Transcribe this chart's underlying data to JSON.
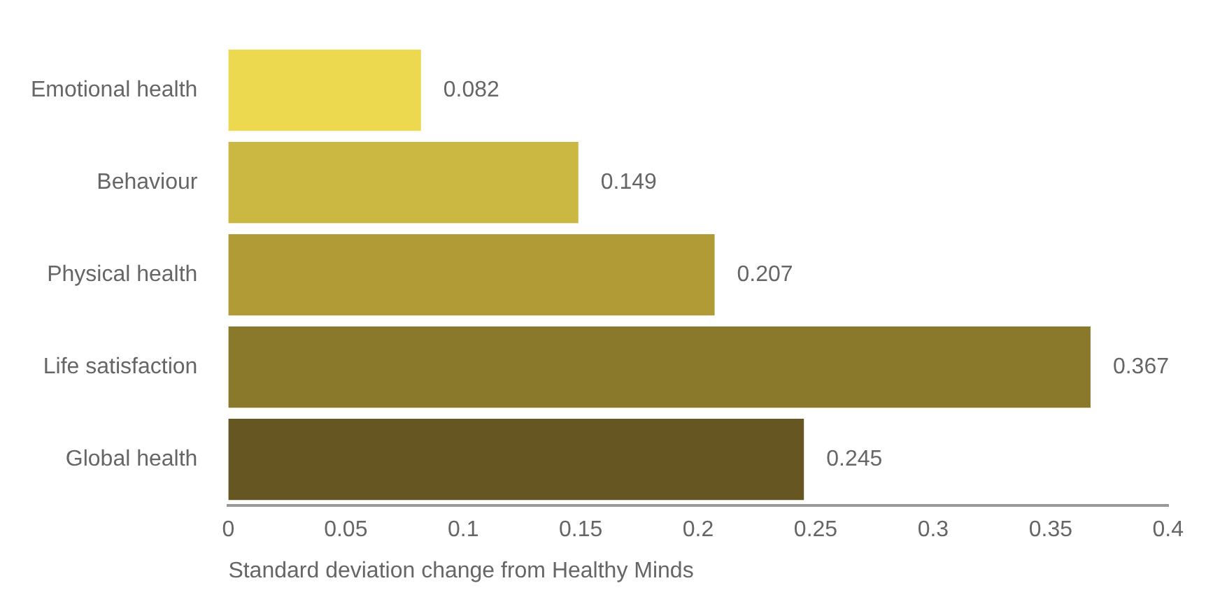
{
  "chart_data": {
    "type": "bar",
    "orientation": "horizontal",
    "categories": [
      "Emotional health",
      "Behaviour",
      "Physical health",
      "Life satisfaction",
      "Global health"
    ],
    "values": [
      0.082,
      0.149,
      0.207,
      0.367,
      0.245
    ],
    "colors": [
      "#ecd94f",
      "#cbb843",
      "#b09b36",
      "#8b792b",
      "#655622"
    ],
    "xlim": [
      0,
      0.4
    ],
    "xticks": [
      0,
      0.05,
      0.1,
      0.15,
      0.2,
      0.25,
      0.3,
      0.35,
      0.4
    ],
    "xlabel": "Standard deviation change from Healthy Minds",
    "data_labels": true,
    "grid": false,
    "legend": false
  }
}
